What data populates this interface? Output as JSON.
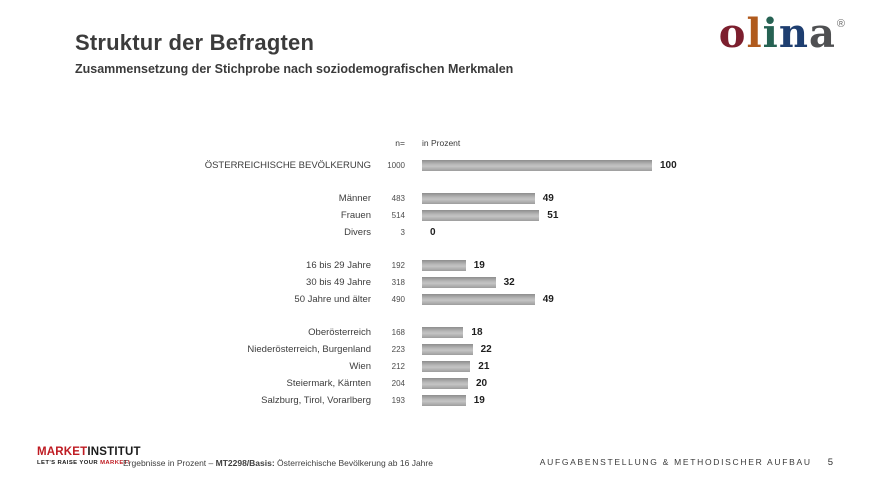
{
  "slide": {
    "title": "Struktur der Befragten",
    "subtitle": "Zusammensetzung der Stichprobe nach soziodemografischen Merkmalen"
  },
  "brand_logo": {
    "name": "olina",
    "registered_mark": "®",
    "letters": [
      {
        "char": "o",
        "color": "#7c1f2e"
      },
      {
        "char": "l",
        "color": "#b05a1d"
      },
      {
        "char": "i",
        "color": "#266253"
      },
      {
        "char": "n",
        "color": "#1e3e70"
      },
      {
        "char": "a",
        "color": "#4f5052"
      }
    ]
  },
  "chart_data": {
    "type": "bar",
    "orientation": "horizontal",
    "xlim": [
      0,
      100
    ],
    "grid": false,
    "legend": false,
    "col_header_n": "n=",
    "col_header_percent": "in Prozent",
    "bar_gradient": [
      "#8d8d8d",
      "#c4c4c4",
      "#9d9d9d"
    ],
    "groups": [
      {
        "rows": [
          {
            "label": "ÖSTERREICHISCHE BEVÖLKERUNG",
            "n": "1000",
            "value": 100
          }
        ]
      },
      {
        "rows": [
          {
            "label": "Männer",
            "n": "483",
            "value": 49
          },
          {
            "label": "Frauen",
            "n": "514",
            "value": 51
          },
          {
            "label": "Divers",
            "n": "3",
            "value": 0
          }
        ]
      },
      {
        "rows": [
          {
            "label": "16 bis 29 Jahre",
            "n": "192",
            "value": 19
          },
          {
            "label": "30 bis 49 Jahre",
            "n": "318",
            "value": 32
          },
          {
            "label": "50 Jahre und älter",
            "n": "490",
            "value": 49
          }
        ]
      },
      {
        "rows": [
          {
            "label": "Oberösterreich",
            "n": "168",
            "value": 18
          },
          {
            "label": "Niederösterreich, Burgenland",
            "n": "223",
            "value": 22
          },
          {
            "label": "Wien",
            "n": "212",
            "value": 21
          },
          {
            "label": "Steiermark, Kärnten",
            "n": "204",
            "value": 20
          },
          {
            "label": "Salzburg, Tirol, Vorarlberg",
            "n": "193",
            "value": 19
          }
        ]
      }
    ]
  },
  "footer": {
    "market_institut": {
      "line1_red": "MARKET",
      "line1_black": "INSTITUT",
      "line2_black": "LET'S RAISE YOUR ",
      "line2_red": "MARKET!",
      "red_color": "#bf1b22"
    },
    "note_prefix": "Ergebnisse in Prozent – ",
    "note_bold": "MT2298/Basis:",
    "note_suffix": " Österreichische Bevölkerung ab 16 Jahre",
    "section_label": "AUFGABENSTELLUNG & METHODISCHER AUFBAU",
    "page_number": "5"
  }
}
